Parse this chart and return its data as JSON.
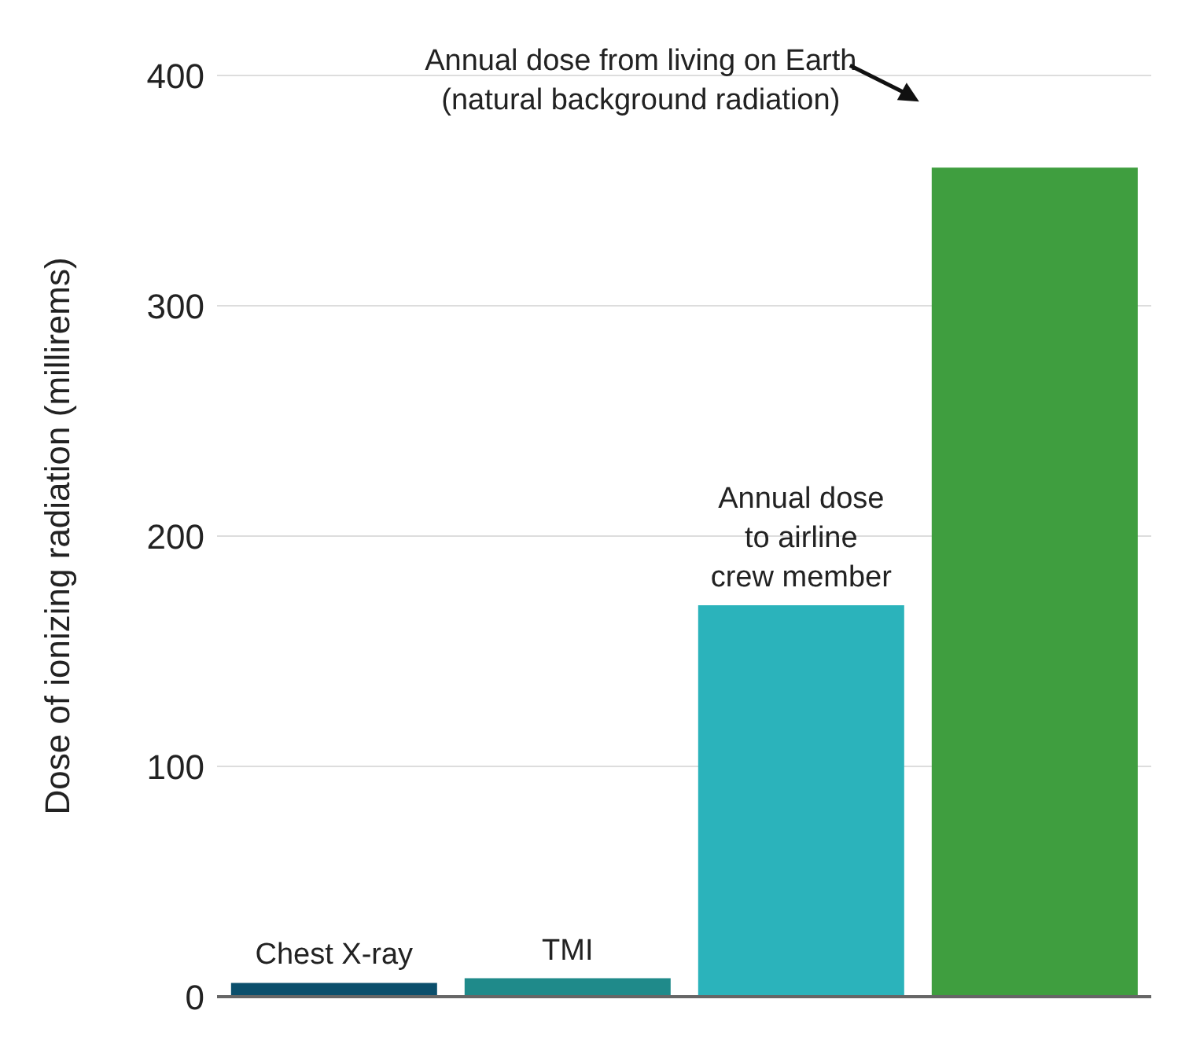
{
  "chart_data": {
    "type": "bar",
    "ylabel": "Dose of ionizing radiation (millirems)",
    "categories": [
      "Chest X-ray",
      "TMI",
      "Annual dose to airline crew member",
      null
    ],
    "annotations": [
      "Annual dose from living on Earth (natural background radiation)"
    ],
    "values": [
      6,
      8,
      170,
      360
    ],
    "colors": [
      "#0b4f6c",
      "#1f8a8a",
      "#2bb3bb",
      "#3f9e3f"
    ],
    "ylim": [
      0,
      400
    ],
    "yticks": [
      0,
      100,
      200,
      300,
      400
    ],
    "grid": "y",
    "tick_labels": "y"
  }
}
